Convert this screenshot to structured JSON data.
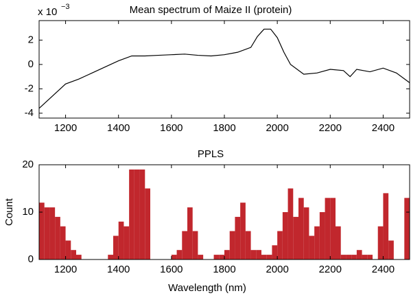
{
  "chart_data": [
    {
      "type": "line",
      "title": "Mean spectrum of Maize II (protein)",
      "y_multiplier": "x 10",
      "y_multiplier_exponent": "−3",
      "x": [
        1100,
        1150,
        1200,
        1250,
        1300,
        1350,
        1400,
        1450,
        1500,
        1550,
        1600,
        1650,
        1700,
        1750,
        1800,
        1850,
        1900,
        1925,
        1950,
        1975,
        2000,
        2025,
        2050,
        2100,
        2150,
        2200,
        2250,
        2275,
        2300,
        2350,
        2400,
        2450,
        2500
      ],
      "values": [
        -3.6,
        -2.6,
        -1.6,
        -1.2,
        -0.7,
        -0.2,
        0.3,
        0.7,
        0.7,
        0.75,
        0.8,
        0.85,
        0.75,
        0.7,
        0.8,
        1.0,
        1.4,
        2.3,
        2.9,
        2.9,
        2.2,
        1.0,
        0,
        -0.8,
        -0.7,
        -0.4,
        -0.5,
        -1.0,
        -0.4,
        -0.6,
        -0.3,
        -0.7,
        -1.5
      ],
      "color": "#000000",
      "xlim": [
        1100,
        2500
      ],
      "xticks": [
        1200,
        1400,
        1600,
        1800,
        2000,
        2200,
        2400
      ],
      "ylim": [
        -4.4,
        3.6
      ],
      "yticks": [
        -4,
        -2,
        0,
        2
      ]
    },
    {
      "type": "histogram",
      "title": "PPLS",
      "xlabel": "Wavelength (nm)",
      "ylabel": "Count",
      "bins": [
        1100,
        1120,
        1140,
        1160,
        1180,
        1200,
        1220,
        1240,
        1260,
        1280,
        1300,
        1320,
        1340,
        1360,
        1380,
        1400,
        1420,
        1440,
        1460,
        1480,
        1500,
        1520,
        1540,
        1560,
        1580,
        1600,
        1620,
        1640,
        1660,
        1680,
        1700,
        1720,
        1740,
        1760,
        1780,
        1800,
        1820,
        1840,
        1860,
        1880,
        1900,
        1920,
        1940,
        1960,
        1980,
        2000,
        2020,
        2040,
        2060,
        2080,
        2100,
        2120,
        2140,
        2160,
        2180,
        2200,
        2220,
        2240,
        2260,
        2280,
        2300,
        2320,
        2340,
        2360,
        2380,
        2400,
        2420,
        2440,
        2460,
        2480,
        2500
      ],
      "values": [
        12,
        11,
        11,
        9,
        7,
        4,
        2,
        1,
        0,
        0,
        0,
        0,
        0,
        1,
        5,
        8,
        7,
        19,
        19,
        19,
        15,
        0,
        0,
        0,
        0,
        1,
        2,
        6,
        11,
        6,
        1,
        0,
        0,
        1,
        1,
        2,
        6,
        9,
        12,
        6,
        2,
        2,
        1,
        1,
        3,
        6,
        10,
        15,
        9,
        13,
        11,
        5,
        7,
        10,
        13,
        13,
        7,
        1,
        1,
        1,
        2,
        1,
        1,
        0,
        7,
        14,
        4,
        0,
        0,
        13
      ],
      "color": "#c1272d",
      "xlim": [
        1100,
        2500
      ],
      "xticks": [
        1200,
        1400,
        1600,
        1800,
        2000,
        2200,
        2400
      ],
      "ylim": [
        0,
        20
      ],
      "yticks": [
        0,
        10,
        20
      ]
    }
  ]
}
